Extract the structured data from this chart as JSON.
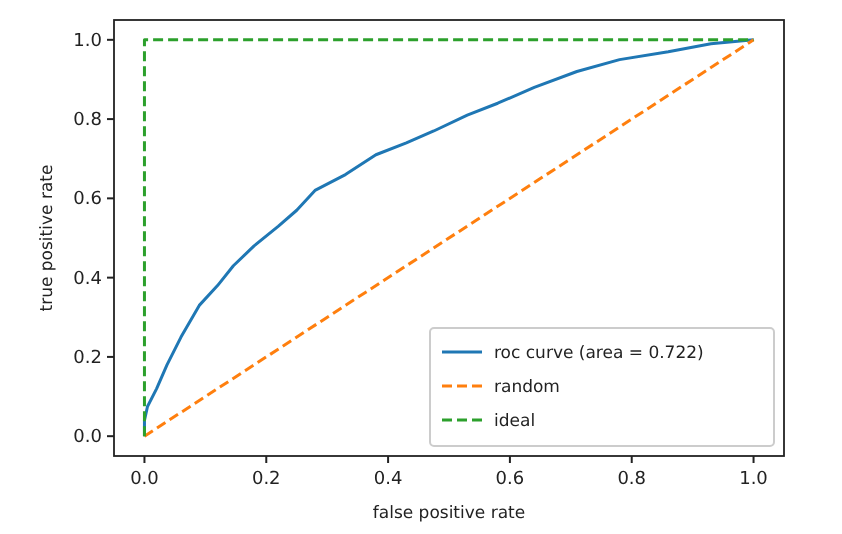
{
  "chart_data": {
    "type": "line",
    "xlabel": "false positive rate",
    "ylabel": "true positive rate",
    "xlim": [
      -0.05,
      1.05
    ],
    "ylim": [
      -0.05,
      1.05
    ],
    "xticks": [
      {
        "value": 0,
        "label": "0.0"
      },
      {
        "value": 0.2,
        "label": "0.2"
      },
      {
        "value": 0.4,
        "label": "0.4"
      },
      {
        "value": 0.6,
        "label": "0.6"
      },
      {
        "value": 0.8,
        "label": "0.8"
      },
      {
        "value": 1,
        "label": "1.0"
      }
    ],
    "yticks": [
      {
        "value": 0,
        "label": "0.0"
      },
      {
        "value": 0.2,
        "label": "0.2"
      },
      {
        "value": 0.4,
        "label": "0.4"
      },
      {
        "value": 0.6,
        "label": "0.6"
      },
      {
        "value": 0.8,
        "label": "0.8"
      },
      {
        "value": 1,
        "label": "1.0"
      }
    ],
    "grid": false,
    "legend": "bottom right",
    "series": [
      {
        "name": "roc curve (area = 0.722)",
        "color": "#1f77b4",
        "line_style": "solid",
        "x": [
          0,
          0,
          0.005,
          0.02,
          0.037,
          0.06,
          0.09,
          0.12,
          0.146,
          0.18,
          0.22,
          0.25,
          0.28,
          0.33,
          0.38,
          0.43,
          0.475,
          0.53,
          0.58,
          0.64,
          0.71,
          0.78,
          0.86,
          0.93,
          1
        ],
        "values": [
          0,
          0.04,
          0.075,
          0.12,
          0.18,
          0.25,
          0.33,
          0.38,
          0.43,
          0.48,
          0.53,
          0.57,
          0.62,
          0.66,
          0.71,
          0.74,
          0.77,
          0.81,
          0.84,
          0.88,
          0.92,
          0.95,
          0.97,
          0.99,
          1
        ]
      },
      {
        "name": "random",
        "color": "#ff7f0e",
        "line_style": "dashed",
        "x": [
          0,
          1
        ],
        "values": [
          0,
          1
        ]
      },
      {
        "name": "ideal",
        "color": "#2ca02c",
        "line_style": "dashed",
        "x": [
          0,
          0,
          1
        ],
        "values": [
          0,
          1,
          1
        ]
      }
    ]
  }
}
